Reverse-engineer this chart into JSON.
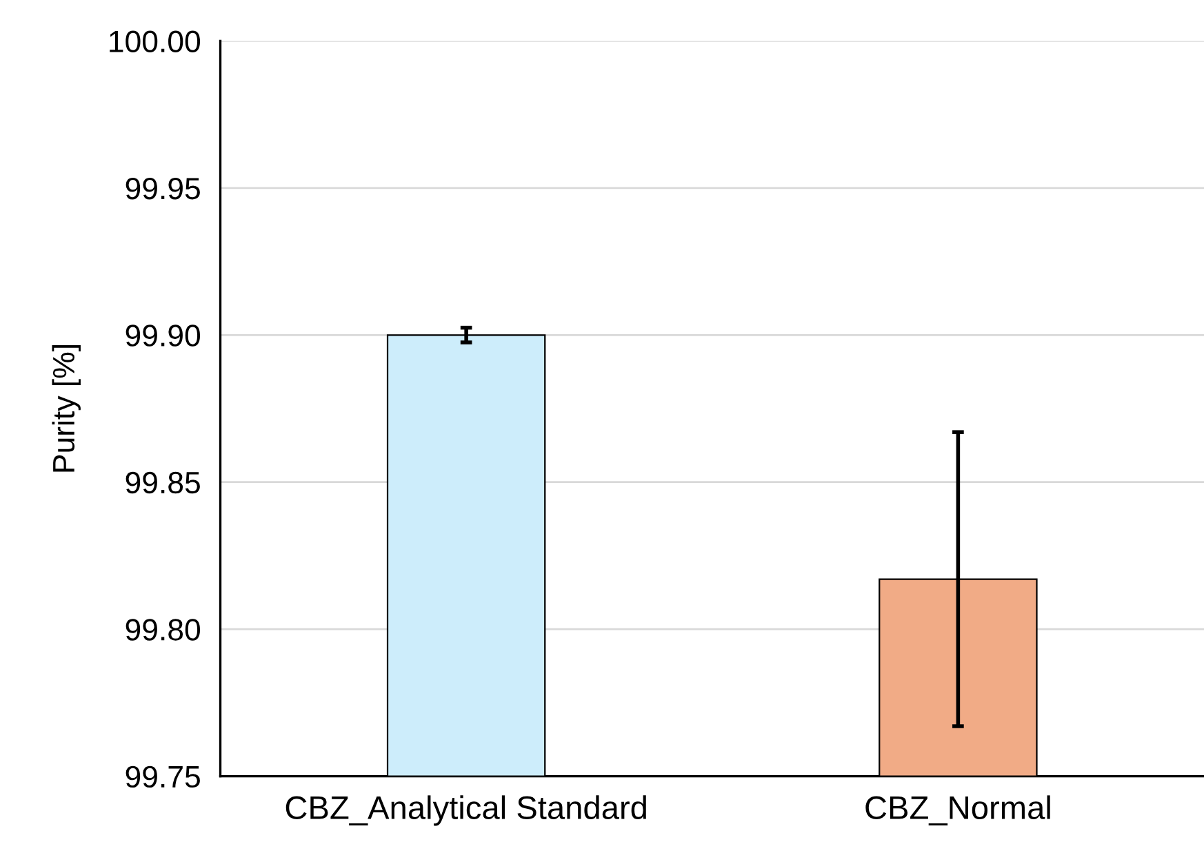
{
  "chart_data": {
    "type": "bar",
    "ylabel": "Purity [%]",
    "categories": [
      "CBZ_Analytical Standard",
      "CBZ_Normal"
    ],
    "values": [
      99.9,
      99.817
    ],
    "errors": [
      0.0025,
      0.05
    ],
    "colors": [
      "#cdedfb",
      "#f1ab86"
    ],
    "ylim": [
      99.75,
      100.0
    ],
    "yticks": [
      {
        "value": 99.75,
        "label": "99.75"
      },
      {
        "value": 99.8,
        "label": "99.80"
      },
      {
        "value": 99.85,
        "label": "99.85"
      },
      {
        "value": 99.9,
        "label": "99.90"
      },
      {
        "value": 99.95,
        "label": "99.95"
      },
      {
        "value": 100.0,
        "label": "100.00"
      }
    ],
    "grid": "y"
  }
}
